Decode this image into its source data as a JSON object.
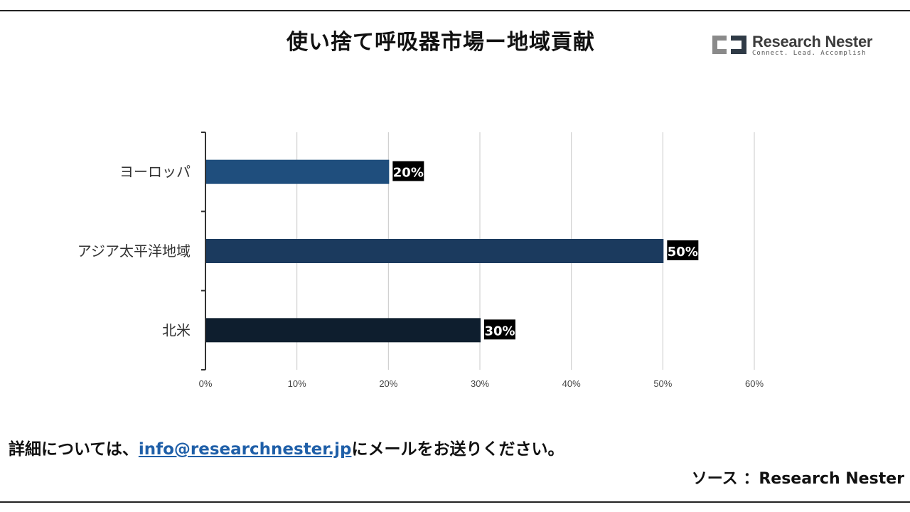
{
  "header": {
    "title": "使い捨て呼吸器市場ー地域貢献"
  },
  "logo": {
    "name": "Research Nester",
    "tagline": "Connect. Lead. Accomplish",
    "mark_colors": [
      "#8a8a8a",
      "#2f3a46"
    ]
  },
  "chart_data": {
    "type": "bar",
    "orientation": "horizontal",
    "categories": [
      "ヨーロッパ",
      "アジア太平洋地域",
      "北米"
    ],
    "values": [
      20,
      50,
      30
    ],
    "data_labels": [
      "20%",
      "50%",
      "30%"
    ],
    "bar_colors": [
      "#1f4e7d",
      "#1b3a5e",
      "#0e1e2e"
    ],
    "xlim": [
      0,
      60
    ],
    "xticks": [
      "0%",
      "10%",
      "20%",
      "30%",
      "40%",
      "50%",
      "60%"
    ],
    "grid": true,
    "title": "",
    "xlabel": "",
    "ylabel": ""
  },
  "footer": {
    "prefix": "詳細については、",
    "email": "info@researchnester.jp",
    "suffix": "にメールをお送りください。",
    "source": "ソース ：Research Nester"
  }
}
